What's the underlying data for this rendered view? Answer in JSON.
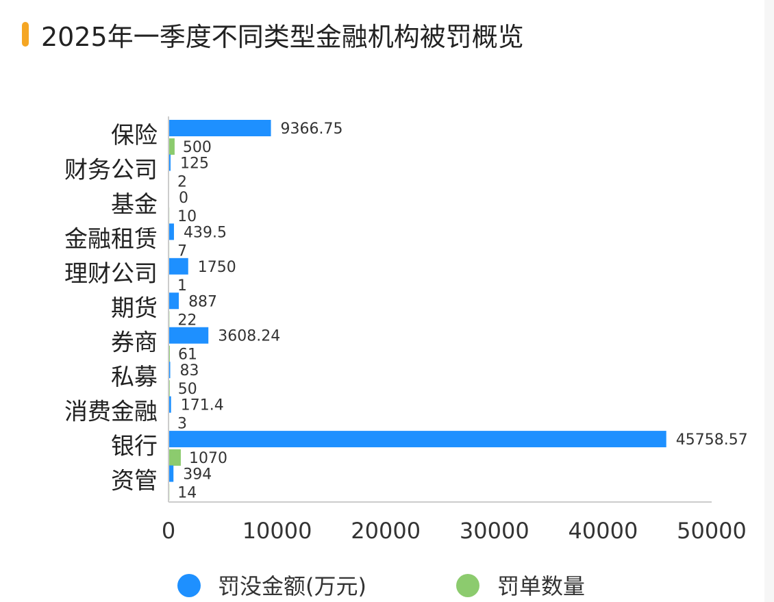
{
  "title": "2025年一季度不同类型金融机构被罚概览",
  "colors": {
    "accent": "#F5A623",
    "series_a": "#1E90FF",
    "series_b": "#8CCB6E"
  },
  "chart_data": {
    "type": "bar",
    "orientation": "horizontal",
    "title": "2025年一季度不同类型金融机构被罚概览",
    "categories": [
      "保险",
      "财务公司",
      "基金",
      "金融租赁",
      "理财公司",
      "期货",
      "券商",
      "私募",
      "消费金融",
      "银行",
      "资管"
    ],
    "series": [
      {
        "name": "罚没金额(万元)",
        "color": "#1E90FF",
        "values": [
          9366.75,
          125,
          0,
          439.5,
          1750,
          887,
          3608.24,
          83,
          171.4,
          45758.57,
          394
        ],
        "labels": [
          "9366.75",
          "125",
          "0",
          "439.5",
          "1750",
          "887",
          "3608.24",
          "83",
          "171.4",
          "45758.57",
          "394"
        ]
      },
      {
        "name": "罚单数量",
        "color": "#8CCB6E",
        "values": [
          500,
          2,
          10,
          7,
          1,
          22,
          61,
          50,
          3,
          1070,
          14
        ],
        "labels": [
          "500",
          "2",
          "10",
          "7",
          "1",
          "22",
          "61",
          "50",
          "3",
          "1070",
          "14"
        ]
      }
    ],
    "xlim": [
      0,
      50000
    ],
    "xticks": [
      "0",
      "10000",
      "20000",
      "30000",
      "40000",
      "50000"
    ],
    "legend_position": "bottom"
  }
}
